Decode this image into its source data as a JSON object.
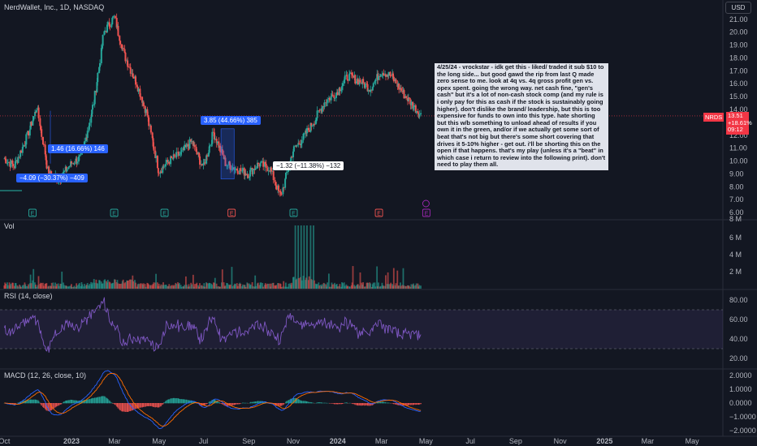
{
  "title": "NerdWallet, Inc., 1D, NASDAQ",
  "currency_button": "USD",
  "symbol_tag": "NRDS",
  "last_price": {
    "price": "13.51",
    "change": "+18.61%",
    "extra": "09:12"
  },
  "note_text": "4/25/24 - vrockstar - idk get this - liked/ traded it sub $10 to the long side... but good gawd the rip from last Q made zero sense to me. look at 4q vs. 4q gross profit gen vs. opex spent. going the wrong way. net cash fine, \"gen's cash\" but it's a lot of non-cash stock comp (and my rule is i only pay for this as cash if the stock is sustainably going higher). don't dislike the brand/ leadership, but this is too expensive for funds to own into this type. hate shorting but this w/b something to unload ahead of results if you own it in the green, and/or if we actually get some sort of beat that's not big but there's some short covering that drives it 5-10% higher - get out. i'll be shorting this on the open if that happens. that's my play (unless it's a \"beat\" in which case i return to review into the following print). don't need to play them all.",
  "measure_tags": [
    {
      "text": "1.46 (16.66%) 146",
      "style": "blue"
    },
    {
      "text": "−4.09 (−30.37%) −409",
      "style": "blue"
    },
    {
      "text": "3.85 (44.66%) 385",
      "style": "blue"
    },
    {
      "text": "−1.32 (−11.38%) −132",
      "style": "white"
    }
  ],
  "chart_data": {
    "type": "line",
    "price_axis": {
      "ticks": [
        "21.00",
        "20.00",
        "19.00",
        "18.00",
        "17.00",
        "16.00",
        "15.00",
        "14.00",
        "13.00",
        "12.00",
        "11.00",
        "10.00",
        "9.00",
        "8.00",
        "7.00",
        "6.00"
      ],
      "range": [
        5.5,
        22.5
      ]
    },
    "time_axis": {
      "ticks": [
        "Oct",
        "2023",
        "Mar",
        "May",
        "Jul",
        "Sep",
        "Nov",
        "2024",
        "Mar",
        "May",
        "Jul",
        "Sep",
        "Nov",
        "2025",
        "Mar",
        "May"
      ]
    },
    "price_series": {
      "x": [
        "2022-10-01",
        "2022-10-15",
        "2022-11-01",
        "2022-11-15",
        "2022-12-01",
        "2022-12-15",
        "2023-01-01",
        "2023-01-15",
        "2023-02-01",
        "2023-02-15",
        "2023-03-01",
        "2023-03-15",
        "2023-04-01",
        "2023-04-15",
        "2023-05-01",
        "2023-05-15",
        "2023-06-01",
        "2023-06-15",
        "2023-07-01",
        "2023-07-15",
        "2023-08-01",
        "2023-08-15",
        "2023-09-01",
        "2023-09-15",
        "2023-10-01",
        "2023-10-15",
        "2023-11-01",
        "2023-11-15",
        "2023-12-01",
        "2023-12-15",
        "2024-01-01",
        "2024-01-15",
        "2024-02-01",
        "2024-02-15",
        "2024-03-01",
        "2024-03-15",
        "2024-04-01",
        "2024-04-15",
        "2024-04-25"
      ],
      "y": [
        10.2,
        9.6,
        11.8,
        14.2,
        9.0,
        8.6,
        9.8,
        10.3,
        14.5,
        20.0,
        21.2,
        18.2,
        16.0,
        13.6,
        9.2,
        10.0,
        10.6,
        11.5,
        9.5,
        12.2,
        9.8,
        9.4,
        9.0,
        9.8,
        9.4,
        7.2,
        10.8,
        11.8,
        13.2,
        14.6,
        15.4,
        16.6,
        16.2,
        15.6,
        17.0,
        16.6,
        15.2,
        14.2,
        13.5
      ]
    },
    "earnings_markers": [
      "E",
      "E",
      "E",
      "E",
      "E",
      "E",
      "E"
    ],
    "volume": {
      "title": "Vol",
      "ticks": [
        "8 M",
        "6 M",
        "4 M",
        "2 M"
      ]
    },
    "rsi": {
      "title": "RSI (14, close)",
      "ticks": [
        "80.00",
        "60.00",
        "40.00",
        "20.00"
      ],
      "upper": 70,
      "lower": 30
    },
    "macd": {
      "title": "MACD (12, 26, close, 10)",
      "ticks": [
        "2.0000",
        "1.0000",
        "0.0000",
        "−1.0000",
        "−2.0000"
      ]
    }
  },
  "colors": {
    "up": "#26a69a",
    "down": "#ef5350",
    "rsi": "#7e57c2",
    "macd": "#2962ff",
    "signal": "#ff6d00",
    "accent": "#2962ff"
  }
}
